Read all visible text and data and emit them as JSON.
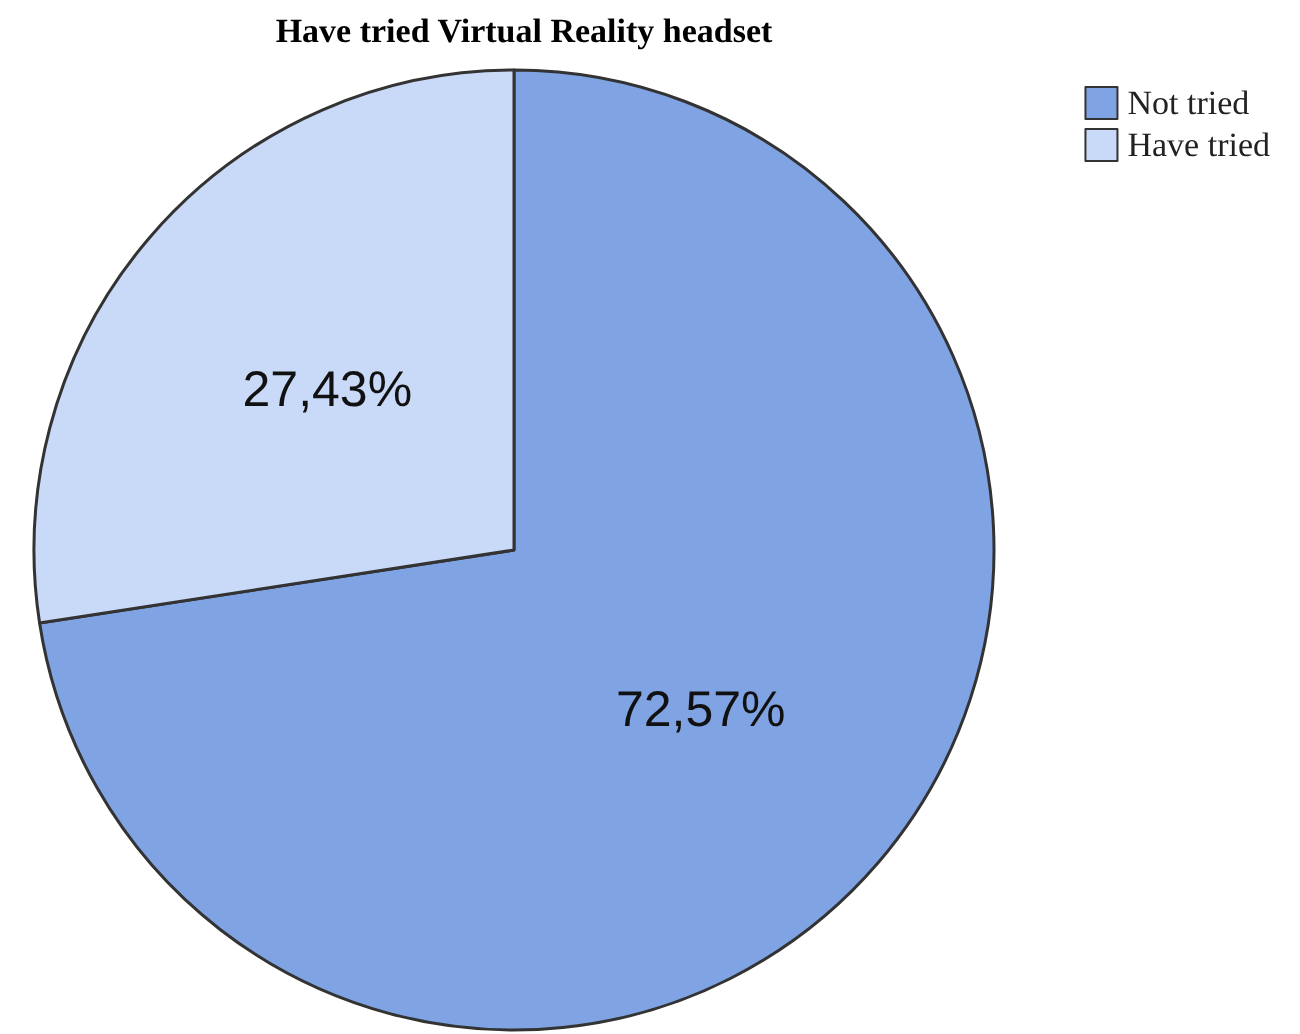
{
  "chart_data": {
    "type": "pie",
    "title": "Have tried Virtual Reality headset",
    "categories": [
      "Not tried",
      "Have tried"
    ],
    "values": [
      72.57,
      27.43
    ],
    "colors": [
      "#7fa3e3",
      "#c9d9f8"
    ],
    "value_labels": [
      "72,57%",
      "27,43%"
    ],
    "legend": "top right"
  }
}
